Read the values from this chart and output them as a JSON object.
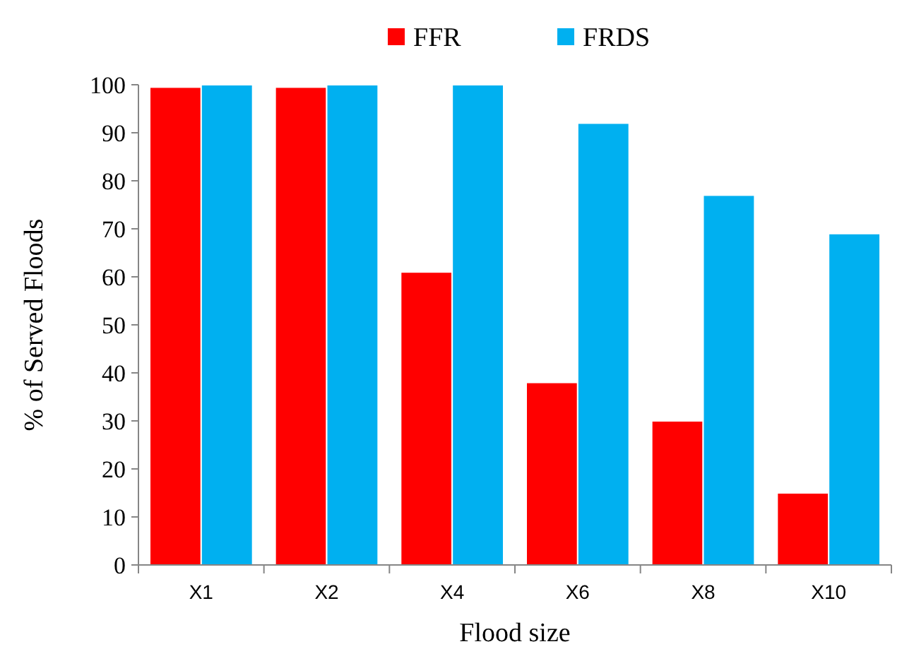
{
  "chart_data": {
    "type": "bar",
    "xlabel": "Flood size",
    "ylabel": "% of Served Floods",
    "categories": [
      "X1",
      "X2",
      "X4",
      "X6",
      "X8",
      "X10"
    ],
    "series": [
      {
        "name": "FFR",
        "color": "#ff0000",
        "values": [
          99.5,
          99.5,
          61,
          38,
          30,
          15
        ]
      },
      {
        "name": "FRDS",
        "color": "#00b0f0",
        "values": [
          100,
          100,
          100,
          92,
          77,
          69
        ]
      }
    ],
    "ylim": [
      0,
      100
    ],
    "yticks": [
      0,
      10,
      20,
      30,
      40,
      50,
      60,
      70,
      80,
      90,
      100
    ],
    "grid": false,
    "legend": "top"
  }
}
